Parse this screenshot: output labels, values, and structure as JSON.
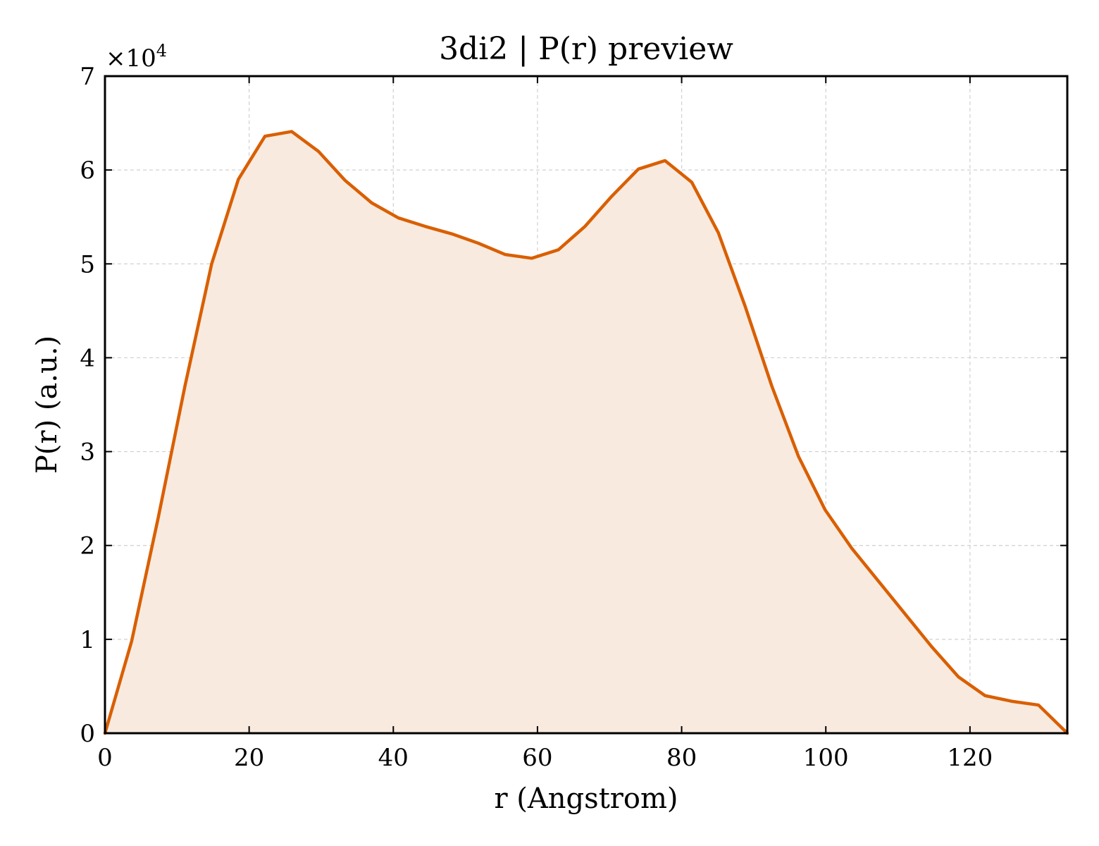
{
  "chart_data": {
    "type": "area",
    "title": "3di2 | P(r) preview",
    "xlabel": "r (Angstrom)",
    "ylabel": "P(r) (a.u.)",
    "y_multiplier": {
      "base": "×10",
      "exponent": "4"
    },
    "xlim": [
      0,
      133.5
    ],
    "ylim": [
      0,
      70000
    ],
    "x_ticks": [
      0,
      20,
      40,
      60,
      80,
      100,
      120
    ],
    "y_ticks": [
      0,
      10000,
      20000,
      30000,
      40000,
      50000,
      60000,
      70000
    ],
    "x_tick_labels": [
      "0",
      "20",
      "40",
      "60",
      "80",
      "100",
      "120"
    ],
    "y_tick_labels": [
      "0",
      "1",
      "2",
      "3",
      "4",
      "5",
      "6",
      "7"
    ],
    "grid": true,
    "series": [
      {
        "line_color": "#d95f02",
        "fill_color": "#f9eadf",
        "x": [
          0,
          3.7,
          7.4,
          11.1,
          14.8,
          18.5,
          22.2,
          25.9,
          29.6,
          33.3,
          37.0,
          40.7,
          44.4,
          48.1,
          51.8,
          55.5,
          59.2,
          62.9,
          66.6,
          70.3,
          74.0,
          77.7,
          81.4,
          85.1,
          88.8,
          92.5,
          96.2,
          99.9,
          103.6,
          107.3,
          111.0,
          114.7,
          118.4,
          122.1,
          125.8,
          129.5,
          133.5
        ],
        "y": [
          0,
          9800,
          23000,
          37000,
          50000,
          59000,
          63600,
          64100,
          62000,
          58900,
          56500,
          54900,
          54000,
          53200,
          52200,
          51000,
          50600,
          51500,
          54000,
          57200,
          60100,
          61000,
          58700,
          53300,
          45500,
          37000,
          29500,
          23800,
          19700,
          16200,
          12700,
          9200,
          6000,
          4000,
          3400,
          3000,
          0
        ]
      }
    ]
  }
}
